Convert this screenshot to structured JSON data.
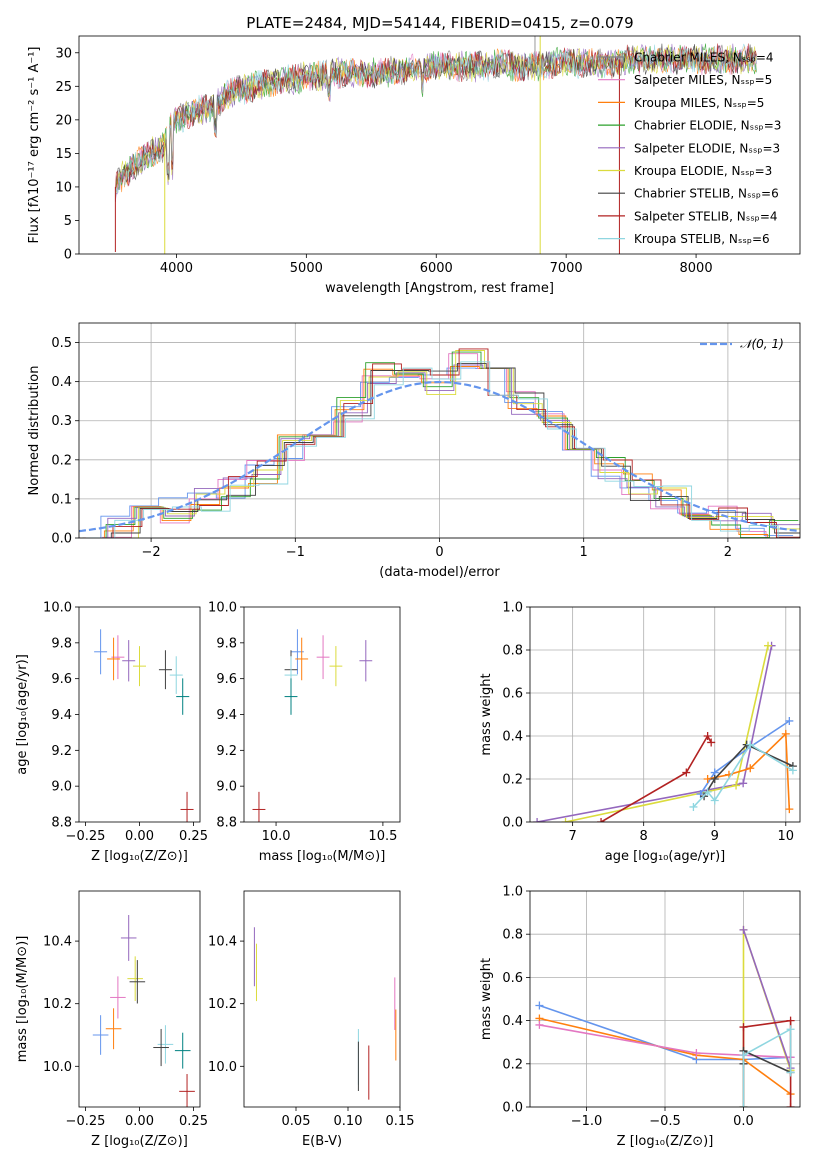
{
  "figure": {
    "title": "PLATE=2484, MJD=54144, FIBERID=0415, z=0.079"
  },
  "chart_data": [
    {
      "id": "spectrum",
      "type": "line",
      "title": "PLATE=2484, MJD=54144, FIBERID=0415, z=0.079",
      "xlabel": "wavelength [Angstrom, rest frame]",
      "ylabel": "Flux [fλ10⁻¹⁷ erg cm⁻² s⁻¹ A⁻¹]",
      "xlim": [
        3250,
        8800
      ],
      "ylim": [
        0,
        32.5
      ],
      "xticks": [
        4000,
        5000,
        6000,
        7000,
        8000
      ],
      "yticks": [
        0,
        5,
        10,
        15,
        20,
        25,
        30
      ],
      "grid": false,
      "legend_position": "top-right",
      "series": [
        {
          "name": "Chabrier MILES, Nₛₛₚ=4",
          "color": "#808080"
        },
        {
          "name": "Salpeter MILES, Nₛₛₚ=5",
          "color": "#e377c2"
        },
        {
          "name": "Kroupa MILES, Nₛₛₚ=5",
          "color": "#ff7f0e"
        },
        {
          "name": "Chabrier ELODIE, Nₛₛₚ=3",
          "color": "#2ca02c"
        },
        {
          "name": "Salpeter ELODIE, Nₛₛₚ=3",
          "color": "#9467bd"
        },
        {
          "name": "Kroupa ELODIE, Nₛₛₚ=3",
          "color": "#dbdb3d"
        },
        {
          "name": "Chabrier STELIB, Nₛₛₚ=6",
          "color": "#404040"
        },
        {
          "name": "Salpeter STELIB, Nₛₛₚ=4",
          "color": "#b22222"
        },
        {
          "name": "Kroupa STELIB, Nₛₛₚ=6",
          "color": "#8fd6e0"
        }
      ],
      "envelope": {
        "x": [
          3530,
          3600,
          3700,
          3800,
          3900,
          3950,
          4000,
          4100,
          4200,
          4300,
          4400,
          4500,
          4600,
          4700,
          4800,
          4900,
          5000,
          5100,
          5200,
          5300,
          5400,
          5500,
          5600,
          5700,
          5800,
          5900,
          6000,
          6100,
          6200,
          6300,
          6400,
          6500,
          6600,
          6700,
          6800,
          6900,
          7000,
          7100,
          7200,
          7300,
          7400,
          7500,
          7600,
          7700,
          7800,
          7900,
          8000,
          8100,
          8200,
          8300,
          8400,
          8470
        ],
        "y": [
          10,
          12,
          13.5,
          15,
          16,
          19,
          20,
          21,
          21.5,
          22,
          24,
          24.5,
          25,
          25.5,
          26,
          26,
          26.5,
          26.5,
          27,
          27,
          27,
          27,
          27,
          27.5,
          27.5,
          27.5,
          28,
          28,
          28,
          28,
          28,
          28.5,
          28,
          28,
          28,
          28.5,
          28.5,
          28.5,
          28.5,
          28.5,
          28.5,
          29,
          29,
          29,
          29,
          29,
          29,
          29,
          29,
          29,
          29,
          29
        ]
      }
    },
    {
      "id": "residuals",
      "type": "line",
      "xlabel": "(data-model)/error",
      "ylabel": "Normed distribution",
      "xlim": [
        -2.5,
        2.5
      ],
      "ylim": [
        0,
        0.55
      ],
      "xticks": [
        -2,
        -1,
        0,
        1,
        2
      ],
      "yticks": [
        0.0,
        0.1,
        0.2,
        0.3,
        0.4,
        0.5
      ],
      "grid": true,
      "legend_position": "top-right",
      "legend": [
        "𝒩(0, 1)"
      ],
      "bin_edges": [
        -2.5,
        -2.3,
        -2.1,
        -1.9,
        -1.7,
        -1.5,
        -1.3,
        -1.1,
        -0.9,
        -0.7,
        -0.5,
        -0.3,
        -0.1,
        0.1,
        0.3,
        0.5,
        0.7,
        0.9,
        1.1,
        1.3,
        1.5,
        1.7,
        1.9,
        2.1,
        2.3,
        2.5
      ],
      "histogram_heights": [
        0.02,
        0.03,
        0.05,
        0.07,
        0.1,
        0.13,
        0.17,
        0.23,
        0.29,
        0.33,
        0.42,
        0.43,
        0.4,
        0.45,
        0.4,
        0.34,
        0.3,
        0.24,
        0.18,
        0.13,
        0.1,
        0.07,
        0.05,
        0.03,
        0.02
      ],
      "gaussian": {
        "mean": 0,
        "sigma": 1
      }
    },
    {
      "id": "age-vs-Z",
      "type": "scatter",
      "xlabel": "Z [log₁₀(Z/Z⊙)]",
      "ylabel": "age  [log₁₀(age/yr)]",
      "xlim": [
        -0.28,
        0.28
      ],
      "ylim": [
        8.8,
        10.0
      ],
      "xticks": [
        -0.25,
        0.0,
        0.25
      ],
      "xticklabels": [
        "−0.25",
        "0.00",
        "0.25"
      ],
      "yticks": [
        8.8,
        9.0,
        9.2,
        9.4,
        9.6,
        9.8,
        10.0
      ],
      "yticklabels": [
        "8.8",
        "9.0",
        "9.2",
        "9.4",
        "9.6",
        "9.8",
        "10.0"
      ],
      "points": [
        {
          "x": -0.18,
          "y": 9.75,
          "color": "#6495ed"
        },
        {
          "x": -0.1,
          "y": 9.72,
          "color": "#e377c2"
        },
        {
          "x": -0.12,
          "y": 9.71,
          "color": "#ff7f0e"
        },
        {
          "x": -0.05,
          "y": 9.7,
          "color": "#9467bd"
        },
        {
          "x": 0.0,
          "y": 9.67,
          "color": "#dbdb3d"
        },
        {
          "x": 0.12,
          "y": 9.65,
          "color": "#404040"
        },
        {
          "x": 0.17,
          "y": 9.62,
          "color": "#8fd6e0"
        },
        {
          "x": 0.2,
          "y": 9.5,
          "color": "#008080"
        },
        {
          "x": 0.22,
          "y": 8.87,
          "color": "#b22222"
        }
      ]
    },
    {
      "id": "age-vs-mass",
      "type": "scatter",
      "xlabel": "mass [log₁₀(M/M⊙)]",
      "xlim": [
        9.85,
        10.58
      ],
      "ylim": [
        8.8,
        10.0
      ],
      "xticks": [
        10.0,
        10.5
      ],
      "xticklabels": [
        "10.0",
        "10.5"
      ],
      "yticks": [
        8.8,
        9.0,
        9.2,
        9.4,
        9.6,
        9.8,
        10.0
      ],
      "yticklabels": [
        "8.8",
        "9.0",
        "9.2",
        "9.4",
        "9.6",
        "9.8",
        "10.0"
      ],
      "points": [
        {
          "x": 10.1,
          "y": 9.75,
          "color": "#6495ed"
        },
        {
          "x": 10.22,
          "y": 9.72,
          "color": "#e377c2"
        },
        {
          "x": 10.12,
          "y": 9.71,
          "color": "#ff7f0e"
        },
        {
          "x": 10.42,
          "y": 9.7,
          "color": "#9467bd"
        },
        {
          "x": 10.28,
          "y": 9.67,
          "color": "#dbdb3d"
        },
        {
          "x": 10.07,
          "y": 9.65,
          "color": "#404040"
        },
        {
          "x": 10.07,
          "y": 9.62,
          "color": "#8fd6e0"
        },
        {
          "x": 10.07,
          "y": 9.5,
          "color": "#008080"
        },
        {
          "x": 9.92,
          "y": 8.87,
          "color": "#b22222"
        }
      ]
    },
    {
      "id": "massweight-vs-age",
      "type": "line",
      "xlabel": "age  [log₁₀(age/yr)]",
      "ylabel": "mass weight",
      "xlim": [
        6.4,
        10.2
      ],
      "ylim": [
        0,
        1
      ],
      "xticks": [
        7,
        8,
        9,
        10
      ],
      "yticks": [
        0.0,
        0.2,
        0.4,
        0.6,
        0.8,
        1.0
      ],
      "grid": true,
      "series": [
        {
          "color": "#9467bd",
          "x": [
            6.5,
            9.4,
            9.8
          ],
          "y": [
            0.0,
            0.18,
            0.82
          ]
        },
        {
          "color": "#dbdb3d",
          "x": [
            6.9,
            9.3,
            9.75
          ],
          "y": [
            0.0,
            0.17,
            0.82
          ]
        },
        {
          "color": "#b22222",
          "x": [
            7.4,
            8.6,
            8.9,
            8.95
          ],
          "y": [
            0.0,
            0.23,
            0.4,
            0.37
          ]
        },
        {
          "color": "#6495ed",
          "x": [
            8.8,
            9.0,
            9.5,
            10.05
          ],
          "y": [
            0.13,
            0.23,
            0.35,
            0.47
          ]
        },
        {
          "color": "#ff7f0e",
          "x": [
            8.9,
            9.2,
            9.5,
            10.0,
            10.05
          ],
          "y": [
            0.2,
            0.22,
            0.25,
            0.41,
            0.06
          ]
        },
        {
          "color": "#404040",
          "x": [
            8.85,
            9.0,
            9.45,
            10.1
          ],
          "y": [
            0.12,
            0.2,
            0.36,
            0.26
          ]
        },
        {
          "color": "#8fd6e0",
          "x": [
            8.7,
            8.9,
            9.0,
            9.5,
            10.1
          ],
          "y": [
            0.07,
            0.14,
            0.1,
            0.36,
            0.24
          ]
        }
      ]
    },
    {
      "id": "mass-vs-Z",
      "type": "scatter",
      "xlabel": "Z [log₁₀(Z/Z⊙)]",
      "ylabel": "mass [log₁₀(M/M⊙)]",
      "xlim": [
        -0.28,
        0.28
      ],
      "ylim": [
        9.87,
        10.56
      ],
      "xticks": [
        -0.25,
        0.0,
        0.25
      ],
      "xticklabels": [
        "−0.25",
        "0.00",
        "0.25"
      ],
      "yticks": [
        10.0,
        10.2,
        10.4
      ],
      "yticklabels": [
        "10.0",
        "10.2",
        "10.4"
      ],
      "points": [
        {
          "x": -0.05,
          "y": 10.41,
          "color": "#9467bd"
        },
        {
          "x": -0.02,
          "y": 10.28,
          "color": "#dbdb3d"
        },
        {
          "x": -0.01,
          "y": 10.27,
          "color": "#404040"
        },
        {
          "x": -0.1,
          "y": 10.22,
          "color": "#e377c2"
        },
        {
          "x": -0.12,
          "y": 10.12,
          "color": "#ff7f0e"
        },
        {
          "x": -0.18,
          "y": 10.1,
          "color": "#6495ed"
        },
        {
          "x": 0.12,
          "y": 10.07,
          "color": "#8fd6e0"
        },
        {
          "x": 0.1,
          "y": 10.06,
          "color": "#404040"
        },
        {
          "x": 0.2,
          "y": 10.05,
          "color": "#008080"
        },
        {
          "x": 0.22,
          "y": 9.92,
          "color": "#b22222"
        }
      ]
    },
    {
      "id": "mass-vs-ebv",
      "type": "scatter",
      "xlabel": "E(B-V)",
      "xlim": [
        0.0,
        0.15
      ],
      "ylim": [
        9.87,
        10.56
      ],
      "xticks": [
        0.05,
        0.1,
        0.15
      ],
      "xticklabels": [
        "0.05",
        "0.10",
        "0.15"
      ],
      "yticks": [
        10.0,
        10.2,
        10.4
      ],
      "yticklabels": [
        "10.0",
        "10.2",
        "10.4"
      ],
      "points": [
        {
          "x": 0.01,
          "y": 10.35,
          "color": "#9467bd"
        },
        {
          "x": 0.012,
          "y": 10.3,
          "color": "#dbdb3d"
        },
        {
          "x": 0.11,
          "y": 10.03,
          "color": "#8fd6e0"
        },
        {
          "x": 0.12,
          "y": 9.98,
          "color": "#b22222"
        },
        {
          "x": 0.145,
          "y": 10.2,
          "color": "#e377c2"
        },
        {
          "x": 0.146,
          "y": 10.1,
          "color": "#ff7f0e"
        },
        {
          "x": 0.11,
          "y": 10.0,
          "color": "#404040"
        }
      ]
    },
    {
      "id": "massweight-vs-Z",
      "type": "line",
      "xlabel": "Z [log₁₀(Z/Z⊙)]",
      "ylabel": "mass weight",
      "xlim": [
        -1.36,
        0.36
      ],
      "ylim": [
        0,
        1
      ],
      "xticks": [
        -1.0,
        -0.5,
        0.0
      ],
      "xticklabels": [
        "−1.0",
        "−0.5",
        "0.0"
      ],
      "yticks": [
        0.0,
        0.2,
        0.4,
        0.6,
        0.8,
        1.0
      ],
      "grid": true,
      "series": [
        {
          "color": "#6495ed",
          "x": [
            -1.3,
            -0.3,
            0.0,
            0.3
          ],
          "y": [
            0.47,
            0.22,
            0.22,
            0.23
          ]
        },
        {
          "color": "#ff7f0e",
          "x": [
            -1.3,
            -0.3,
            0.0,
            0.3
          ],
          "y": [
            0.41,
            0.24,
            0.22,
            0.06
          ]
        },
        {
          "color": "#e377c2",
          "x": [
            -1.3,
            -0.3,
            0.0,
            0.3
          ],
          "y": [
            0.38,
            0.25,
            0.24,
            0.23
          ]
        },
        {
          "color": "#dbdb3d",
          "x": [
            0.0,
            0.0,
            0.3
          ],
          "y": [
            0.0,
            0.82,
            0.17
          ]
        },
        {
          "color": "#9467bd",
          "x": [
            0.0,
            0.3
          ],
          "y": [
            0.82,
            0.18
          ]
        },
        {
          "color": "#b22222",
          "x": [
            0.0,
            0.0,
            0.3,
            0.3
          ],
          "y": [
            0.0,
            0.37,
            0.4,
            0.0
          ]
        },
        {
          "color": "#404040",
          "x": [
            0.0,
            0.0,
            0.3
          ],
          "y": [
            0.2,
            0.26,
            0.16
          ]
        },
        {
          "color": "#8fd6e0",
          "x": [
            0.0,
            0.0,
            0.3,
            0.3
          ],
          "y": [
            0.0,
            0.24,
            0.36,
            0.16
          ]
        }
      ]
    }
  ]
}
